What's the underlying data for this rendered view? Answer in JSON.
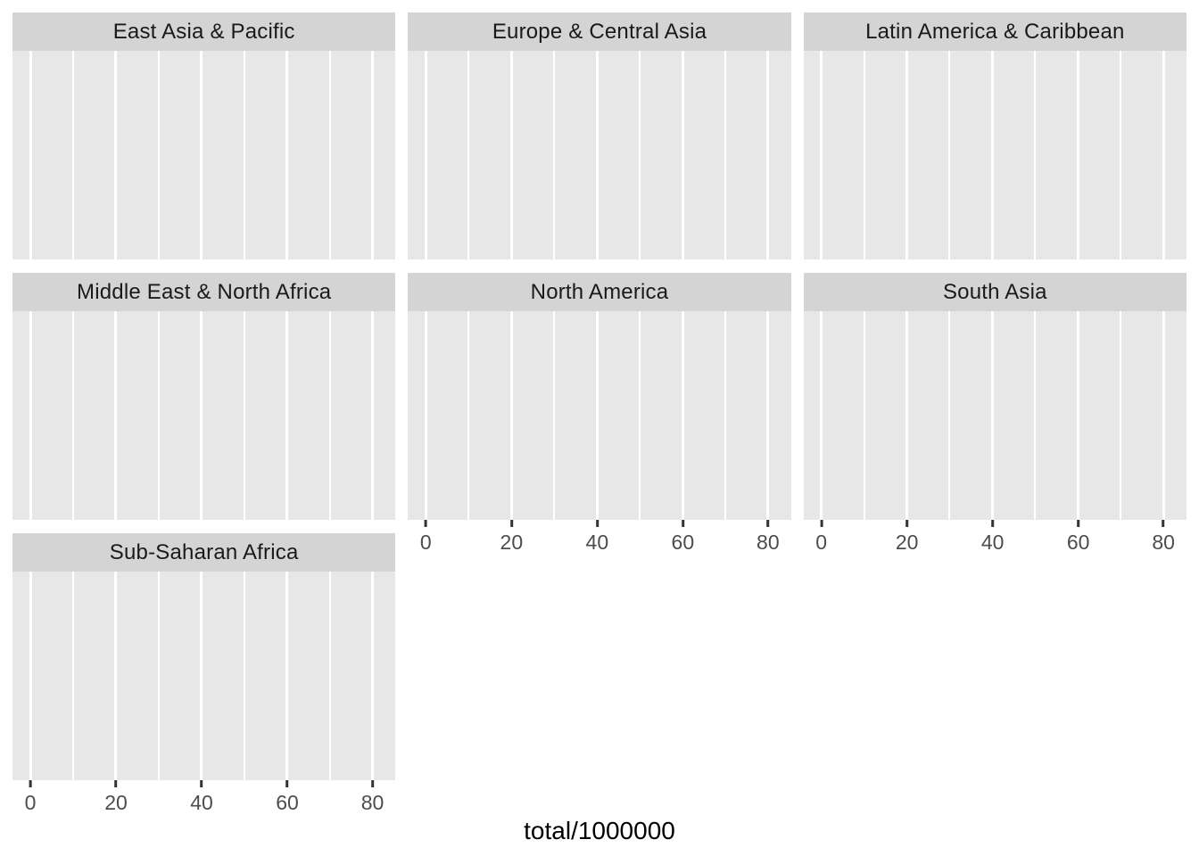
{
  "figure": {
    "facets": [
      {
        "label": "East Asia & Pacific"
      },
      {
        "label": "Europe & Central Asia"
      },
      {
        "label": "Latin America & Caribbean"
      },
      {
        "label": "Middle East & North Africa"
      },
      {
        "label": "North America"
      },
      {
        "label": "South Asia"
      },
      {
        "label": "Sub-Saharan Africa"
      }
    ],
    "x_axis": {
      "title": "total/1000000",
      "tick_labels": [
        "0",
        "20",
        "40",
        "60",
        "80"
      ]
    },
    "colors": {
      "page_background": "#ffffff",
      "strip_background": "#d4d4d4",
      "strip_text": "#1a1a1a",
      "panel_background": "#e7e7e7",
      "gridline": "#ffffff",
      "tick_mark": "#333333",
      "axis_text": "#4d4d4d",
      "axis_title_text": "#000000"
    }
  },
  "chart_data": {
    "type": "bar",
    "title": "",
    "xlabel": "total/1000000",
    "ylabel": "",
    "x_ticks": [
      0,
      20,
      40,
      60,
      80
    ],
    "x_minor_gridlines": [
      10,
      30,
      50,
      70
    ],
    "xlim": [
      -4.5,
      87.5
    ],
    "grid": "on",
    "legend": "none",
    "facet_layout": {
      "ncols": 3,
      "nrows": 3
    },
    "facets": [
      "East Asia & Pacific",
      "Europe & Central Asia",
      "Latin America & Caribbean",
      "Middle East & North Africa",
      "North America",
      "South Asia",
      "Sub-Saharan Africa"
    ],
    "series": [],
    "panels_empty": true
  }
}
